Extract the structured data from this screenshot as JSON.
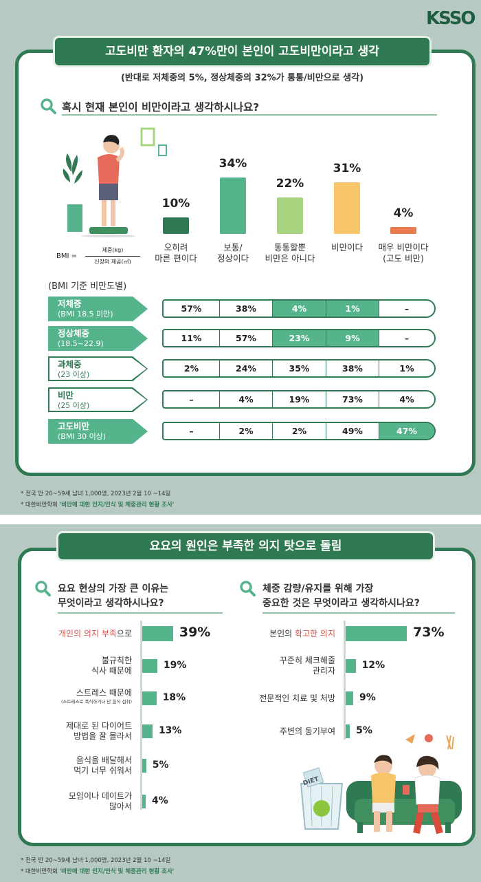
{
  "logo": "KSSO",
  "section1": {
    "title": "고도비만 환자의 47%만이 본인이 고도비만이라고 생각",
    "subtitle": "(반대로 저체중의 5%, 정상체중의 32%가 통통/비만으로 생각)",
    "question": "혹시 현재 본인이 비만이라고 생각하시나요?",
    "bmi_label": "BMI =",
    "bmi_numerator": "체중(kg)",
    "bmi_denominator": "신장의 제곱(㎡)",
    "group_caption": "(BMI 기준 비만도별)",
    "footnote_line1": "* 전국 만 20~59세 남녀 1,000명, 2023년 2월 10 ~14일",
    "footnote_line2_prefix": "* 대한비만학회 ",
    "footnote_line2_bold": "'비만에 대한 인지/인식 및 체중관리 현황 조사'"
  },
  "section2": {
    "title": "요요의 원인은 부족한 의지 탓으로 돌림",
    "q_left": [
      "요요 현상의 가장 큰 이유는",
      "무엇이라고 생각하시나요?"
    ],
    "q_right": [
      "체중 감량/유지를 위해 가장",
      "중요한 것은 무엇이라고 생각하시나요?"
    ],
    "footnote_line1": "* 전국 만 20~59세 남녀 1,000명, 2023년 2월 10 ~14일",
    "footnote_line2_prefix": "* 대한비만학회 ",
    "footnote_line2_bold": "'비만에 대한 인지/인식 및 체중관리 현황 조사'",
    "diet_label": "DIET"
  },
  "colors": {
    "dark_green": "#2f7a52",
    "green": "#56b48d",
    "light_green": "#a9d47f",
    "yellow": "#f7c46a",
    "orange": "#ea7b4e",
    "background": "#b6c9c3"
  },
  "chart_data": [
    {
      "type": "bar",
      "title": "혹시 현재 본인이 비만이라고 생각하시나요?",
      "categories": [
        "오히려\n마른 편이다",
        "보통/\n정상이다",
        "통통할뿐\n비만은 아니다",
        "비만이다",
        "매우 비만이다\n(고도 비만)"
      ],
      "values": [
        10,
        34,
        22,
        31,
        4
      ],
      "value_labels": [
        "10%",
        "34%",
        "22%",
        "31%",
        "4%"
      ],
      "colors": [
        "#2f7a52",
        "#56b48d",
        "#a9d47f",
        "#f7c46a",
        "#ea7b4e"
      ],
      "ylim": [
        0,
        34
      ]
    },
    {
      "type": "table",
      "title": "(BMI 기준 비만도별)",
      "rows": [
        {
          "group": "저체중",
          "range": "(BMI 18.5 미만)",
          "values": [
            "57%",
            "38%",
            "4%",
            "1%",
            "–"
          ],
          "highlight": [
            2,
            3
          ],
          "label_filled": true
        },
        {
          "group": "정상체중",
          "range": "(18.5~22.9)",
          "values": [
            "11%",
            "57%",
            "23%",
            "9%",
            "–"
          ],
          "highlight": [
            2,
            3
          ],
          "label_filled": true
        },
        {
          "group": "과체중",
          "range": "(23 이상)",
          "values": [
            "2%",
            "24%",
            "35%",
            "38%",
            "1%"
          ],
          "highlight": [],
          "label_filled": false
        },
        {
          "group": "비만",
          "range": "(25 이상)",
          "values": [
            "–",
            "4%",
            "19%",
            "73%",
            "4%"
          ],
          "highlight": [],
          "label_filled": false
        },
        {
          "group": "고도비만",
          "range": "(BMI 30 이상)",
          "values": [
            "–",
            "2%",
            "2%",
            "49%",
            "47%"
          ],
          "highlight": [
            4
          ],
          "label_filled": true
        }
      ]
    },
    {
      "type": "bar",
      "title": "요요 현상의 가장 큰 이유는 무엇이라고 생각하시나요?",
      "categories": [
        "개인의 의지 부족으로",
        "불규칙한 식사 때문에",
        "스트레스 때문에",
        "제대로 된 다이어트 방법을 잘 몰라서",
        "음식을 배달해서 먹기 너무 쉬워서",
        "모임이나 데이트가 많아서"
      ],
      "values": [
        39,
        19,
        18,
        13,
        5,
        4
      ],
      "value_labels": [
        "39%",
        "19%",
        "18%",
        "13%",
        "5%",
        "4%"
      ],
      "labels": [
        {
          "lines": [
            "개인의 의지 부족으로"
          ],
          "hl": "개인의 의지 부족",
          "rest": "으로"
        },
        {
          "lines": [
            "불규칙한",
            "식사 때문에"
          ]
        },
        {
          "lines": [
            "스트레스 때문에"
          ],
          "note": "(스트레스로 폭식하거나 단 음식 섭취)"
        },
        {
          "lines": [
            "제대로 된 다이어트",
            "방법을 잘 몰라서"
          ]
        },
        {
          "lines": [
            "음식을 배달해서",
            "먹기 너무 쉬워서"
          ]
        },
        {
          "lines": [
            "모임이나 데이트가",
            "많아서"
          ]
        }
      ]
    },
    {
      "type": "bar",
      "title": "체중 감량/유지를 위해 가장 중요한 것은 무엇이라고 생각하시나요?",
      "categories": [
        "본인의 확고한 의지",
        "꾸준히 체크해줄 관리자",
        "전문적인 치료 및 처방",
        "주변의 동기부여"
      ],
      "values": [
        73,
        12,
        9,
        5
      ],
      "value_labels": [
        "73%",
        "12%",
        "9%",
        "5%"
      ],
      "labels": [
        {
          "lines": [
            "본인의 확고한 의지"
          ],
          "pre": "본인의 ",
          "hl": "확고한 의지"
        },
        {
          "lines": [
            "꾸준히 체크해줄",
            "관리자"
          ]
        },
        {
          "lines": [
            "전문적인 치료 및 처방"
          ]
        },
        {
          "lines": [
            "주변의 동기부여"
          ]
        }
      ]
    }
  ]
}
